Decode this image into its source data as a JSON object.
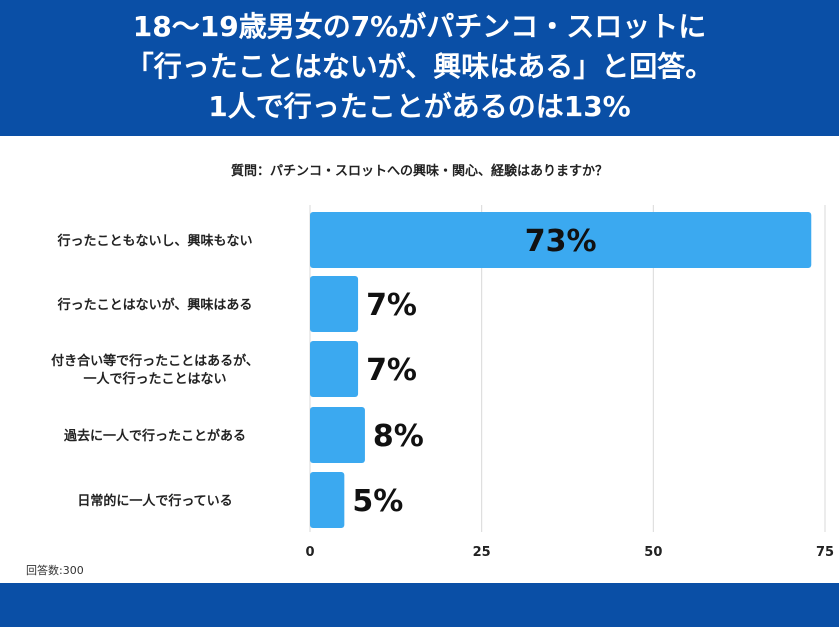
{
  "header": {
    "line1": "18〜19歳男女の7%がパチンコ・スロットに",
    "line2": "「行ったことはないが、興味はある」と回答。",
    "line3": "1人で行ったことがあるのは13%"
  },
  "colors": {
    "header_bg": "#0a4fa6",
    "bar": "#3ba9f0",
    "grid": "#d9d9d9"
  },
  "sample_size": "回答数:300",
  "chart_data": {
    "type": "bar",
    "orientation": "horizontal",
    "title": "質問：パチンコ・スロットへの興味・関心、経験はありますか？",
    "categories": [
      [
        "行ったこともないし、興味もない"
      ],
      [
        "行ったことはないが、興味はある"
      ],
      [
        "付き合い等で行ったことはあるが、",
        "一人で行ったことはない"
      ],
      [
        "過去に一人で行ったことがある"
      ],
      [
        "日常的に一人で行っている"
      ]
    ],
    "values": [
      73,
      7,
      7,
      8,
      5
    ],
    "value_labels": [
      "73%",
      "7%",
      "7%",
      "8%",
      "5%"
    ],
    "xlim": [
      0,
      75
    ],
    "xticks": [
      0,
      25,
      50,
      75
    ],
    "grid": true
  }
}
